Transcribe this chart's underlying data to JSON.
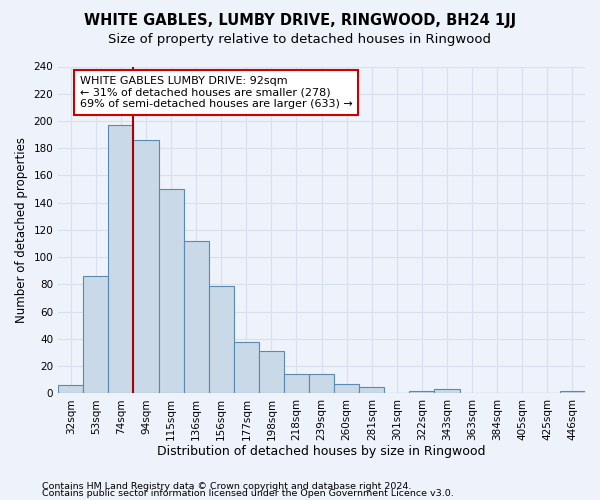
{
  "title": "WHITE GABLES, LUMBY DRIVE, RINGWOOD, BH24 1JJ",
  "subtitle": "Size of property relative to detached houses in Ringwood",
  "xlabel": "Distribution of detached houses by size in Ringwood",
  "ylabel": "Number of detached properties",
  "categories": [
    "32sqm",
    "53sqm",
    "74sqm",
    "94sqm",
    "115sqm",
    "136sqm",
    "156sqm",
    "177sqm",
    "198sqm",
    "218sqm",
    "239sqm",
    "260sqm",
    "281sqm",
    "301sqm",
    "322sqm",
    "343sqm",
    "363sqm",
    "384sqm",
    "405sqm",
    "425sqm",
    "446sqm"
  ],
  "values": [
    6,
    86,
    197,
    186,
    150,
    112,
    79,
    38,
    31,
    14,
    14,
    7,
    5,
    0,
    2,
    3,
    0,
    0,
    0,
    0,
    2
  ],
  "bar_color": "#c9d9e8",
  "bar_edge_color": "#5a8ab0",
  "vline_x": 2.5,
  "annotation_title": "WHITE GABLES LUMBY DRIVE: 92sqm",
  "annotation_line1": "← 31% of detached houses are smaller (278)",
  "annotation_line2": "69% of semi-detached houses are larger (633) →",
  "annotation_box_facecolor": "#ffffff",
  "annotation_box_edgecolor": "#cc0000",
  "vline_color": "#aa0000",
  "ylim": [
    0,
    240
  ],
  "yticks": [
    0,
    20,
    40,
    60,
    80,
    100,
    120,
    140,
    160,
    180,
    200,
    220,
    240
  ],
  "footer1": "Contains HM Land Registry data © Crown copyright and database right 2024.",
  "footer2": "Contains public sector information licensed under the Open Government Licence v3.0.",
  "bg_color": "#eef2fa",
  "grid_color": "#d8e0f0",
  "title_fontsize": 10.5,
  "subtitle_fontsize": 9.5,
  "ylabel_fontsize": 8.5,
  "xlabel_fontsize": 9,
  "tick_fontsize": 7.5,
  "annotation_fontsize": 8,
  "footer_fontsize": 6.8
}
